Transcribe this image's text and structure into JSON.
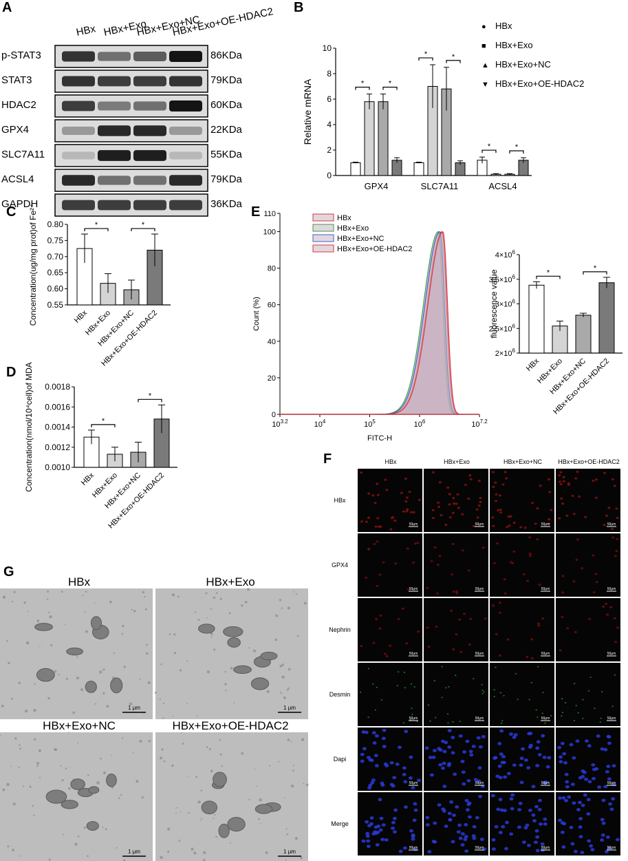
{
  "panels": {
    "A": "A",
    "B": "B",
    "C": "C",
    "D": "D",
    "E": "E",
    "F": "F",
    "G": "G"
  },
  "colors": {
    "bar_white": "#ffffff",
    "bar_light": "#d4d4d4",
    "bar_mid": "#a9a9a9",
    "bar_dark": "#7a7a7a",
    "flow_red": "#d9343d",
    "flow_green": "#3c9b45",
    "flow_blue": "#3c5fc8",
    "flow_fill": "#c8b0c0"
  },
  "panelA": {
    "columns": [
      "HBx",
      "HBx+Exo",
      "HBx+Exo+NC",
      "HBx+Exo+OE-HDAC2"
    ],
    "rows": [
      {
        "protein": "p-STAT3",
        "size": "86KDa",
        "intensity": [
          0.85,
          0.55,
          0.65,
          1.0
        ]
      },
      {
        "protein": "STAT3",
        "size": "79KDa",
        "intensity": [
          0.85,
          0.8,
          0.8,
          0.85
        ]
      },
      {
        "protein": "HDAC2",
        "size": "60KDa",
        "intensity": [
          0.8,
          0.5,
          0.55,
          1.0
        ]
      },
      {
        "protein": "GPX4",
        "size": "22KDa",
        "intensity": [
          0.35,
          0.9,
          0.9,
          0.35
        ]
      },
      {
        "protein": "SLC7A11",
        "size": "55KDa",
        "intensity": [
          0.2,
          0.95,
          0.95,
          0.2
        ]
      },
      {
        "protein": "ACSL4",
        "size": "79KDa",
        "intensity": [
          0.9,
          0.55,
          0.55,
          0.9
        ]
      },
      {
        "protein": "GAPDH",
        "size": "36KDa",
        "intensity": [
          0.8,
          0.8,
          0.8,
          0.8
        ]
      }
    ]
  },
  "chart_data": [
    {
      "id": "B",
      "type": "bar",
      "categories": [
        "GPX4",
        "SLC7A11",
        "ACSL4"
      ],
      "series": [
        {
          "name": "HBx",
          "values": [
            1.0,
            1.0,
            1.2
          ]
        },
        {
          "name": "HBx+Exo",
          "values": [
            5.8,
            7.0,
            0.1
          ]
        },
        {
          "name": "HBx+Exo+NC",
          "values": [
            5.8,
            6.8,
            0.1
          ]
        },
        {
          "name": "HBx+Exo+OE-HDAC2",
          "values": [
            1.2,
            1.0,
            1.2
          ]
        }
      ],
      "errors": [
        [
          0.05,
          0.05,
          0.25
        ],
        [
          0.6,
          1.7,
          0.05
        ],
        [
          0.6,
          1.7,
          0.05
        ],
        [
          0.2,
          0.15,
          0.2
        ]
      ],
      "legend_markers": [
        "●",
        "■",
        "▲",
        "▼"
      ],
      "ylabel": "Relative mRNA",
      "ylim": [
        0,
        10
      ],
      "yticks": [
        "0",
        "2",
        "4",
        "6",
        "8",
        "10"
      ],
      "significance": "*"
    },
    {
      "id": "C",
      "type": "bar",
      "categories": [
        "HBx",
        "HBx+Exo",
        "HBx+Exo+NC",
        "HBx+Exo+OE-HDAC2"
      ],
      "values": [
        0.725,
        0.617,
        0.597,
        0.72
      ],
      "errors": [
        0.045,
        0.03,
        0.03,
        0.05
      ],
      "ylabel": "Concentration(ug/mg prot)of Fe²⁺",
      "ylim": [
        0.55,
        0.8
      ],
      "yticks": [
        "0.55",
        "0.60",
        "0.65",
        "0.70",
        "0.75",
        "0.80"
      ],
      "significance": "*"
    },
    {
      "id": "D",
      "type": "bar",
      "categories": [
        "HBx",
        "HBx+Exo",
        "HBx+Exo+NC",
        "HBx+Exo+OE-HDAC2"
      ],
      "values": [
        0.0013,
        0.00113,
        0.00115,
        0.00148
      ],
      "errors": [
        7e-05,
        7e-05,
        0.0001,
        0.00014
      ],
      "ylabel": "Concentration(nmol/10⁴cell)of MDA",
      "ylim": [
        0.001,
        0.0018
      ],
      "yticks": [
        "0.0010",
        "0.0012",
        "0.0014",
        "0.0016",
        "0.0018"
      ],
      "significance": "*"
    },
    {
      "id": "E-histogram",
      "type": "area",
      "series": [
        {
          "name": "HBx",
          "peak_log": 6.45
        },
        {
          "name": "HBx+Exo",
          "peak_log": 6.38
        },
        {
          "name": "HBx+Exo+NC",
          "peak_log": 6.41
        },
        {
          "name": "HBx+Exo+OE-HDAC2",
          "peak_log": 6.47
        }
      ],
      "xlabel": "FITC-H",
      "ylabel": "Count  (%)",
      "ylim": [
        0,
        110
      ],
      "yticks": [
        "0",
        "20",
        "40",
        "60",
        "80",
        "100",
        "110"
      ],
      "xtick_bases": [
        "10",
        "10",
        "10",
        "10",
        "10"
      ],
      "xtick_exps": [
        "3.2",
        "4",
        "5",
        "6",
        "7.2"
      ]
    },
    {
      "id": "E-bar",
      "type": "bar",
      "categories": [
        "HBx",
        "HBx+Exo",
        "HBx+Exo+NC",
        "HBx+Exo+OE-HDAC2"
      ],
      "values": [
        3380000,
        2550000,
        2770000,
        3430000
      ],
      "errors": [
        70000,
        100000,
        40000,
        110000
      ],
      "ylabel": "fluorescence value",
      "ylim": [
        2000000,
        4000000
      ],
      "yticks": [
        {
          "m": "2",
          "e": "6"
        },
        {
          "m": "2.5",
          "e": "6"
        },
        {
          "m": "3",
          "e": "6"
        },
        {
          "m": "3.5",
          "e": "6"
        },
        {
          "m": "4",
          "e": "6"
        }
      ],
      "tick_suffix": "×10",
      "significance": "*"
    }
  ],
  "panelF": {
    "columns": [
      "HBx",
      "HBx+Exo",
      "HBx+Exo+NC",
      "HBx+Exo+OE-HDAC2"
    ],
    "rows": [
      "HBx",
      "GPX4",
      "Nephrin",
      "Desmin",
      "Dapi",
      "Merge"
    ],
    "scale": "50μm"
  },
  "panelG": {
    "labels": [
      "HBx",
      "HBx+Exo",
      "HBx+Exo+NC",
      "HBx+Exo+OE-HDAC2"
    ],
    "scale": "1 μm"
  }
}
